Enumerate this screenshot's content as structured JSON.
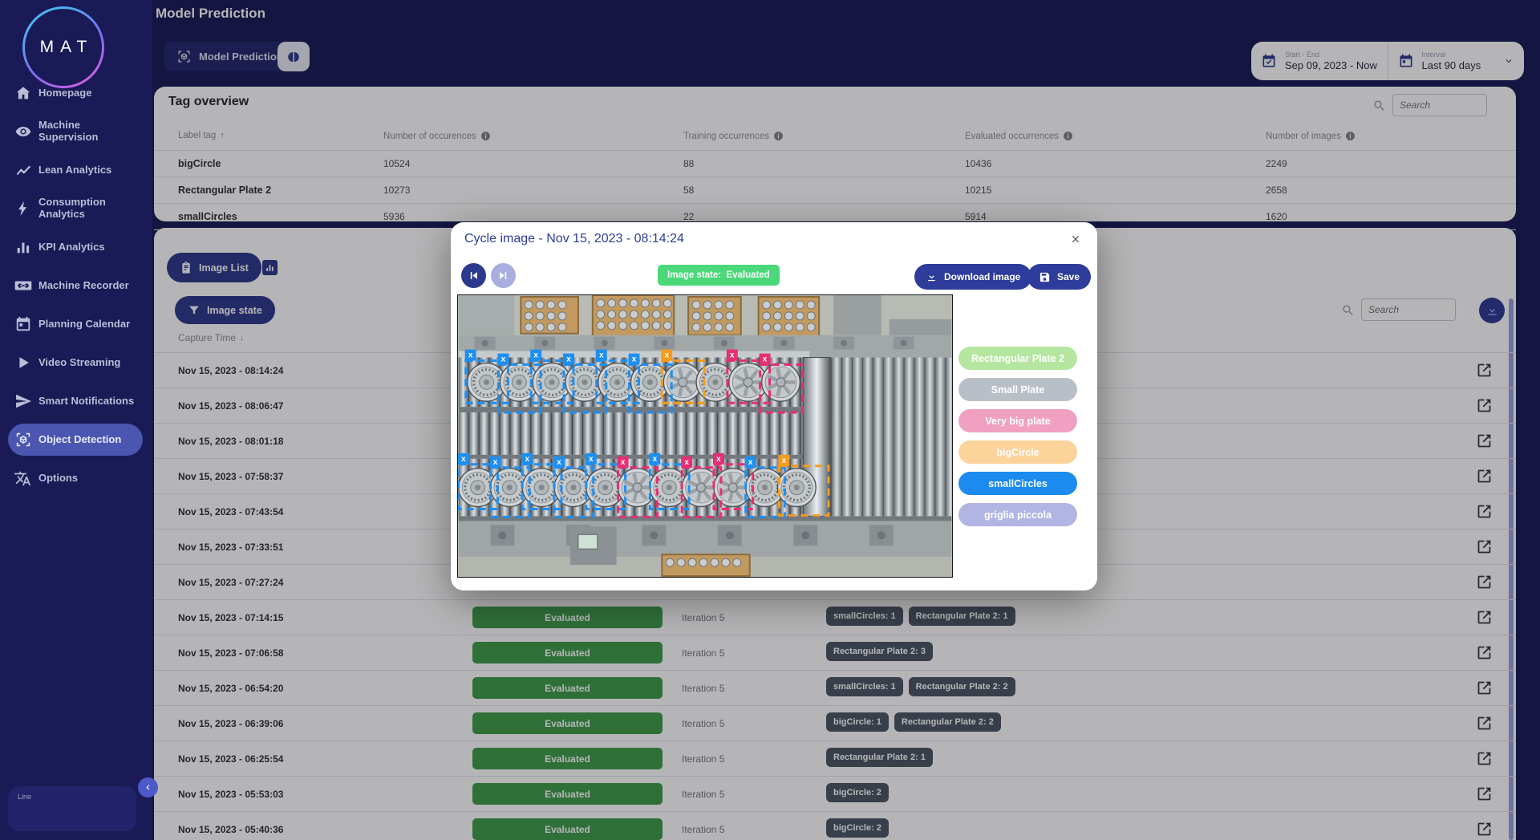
{
  "colors": {
    "navy": "#191a56",
    "accent": "#2d3a8c",
    "active_item": "#4a56b0",
    "green_badge": "#3f9d4b",
    "modal_green": "#4bd879",
    "chip": "#4d5765",
    "box_blue": "#1e8ff2",
    "box_orange": "#f79b18",
    "box_pink": "#e62e72",
    "scrollbar": "#9aa3e0"
  },
  "sidebar": {
    "logo_text": "MAT",
    "items": [
      {
        "label": "Homepage",
        "icon": "home-icon",
        "active": false
      },
      {
        "label": "Machine Supervision",
        "icon": "eye-icon",
        "active": false
      },
      {
        "label": "Lean Analytics",
        "icon": "line-chart-icon",
        "active": false
      },
      {
        "label": "Consumption Analytics",
        "icon": "lightning-icon",
        "active": false
      },
      {
        "label": "KPI Analytics",
        "icon": "bar-chart-icon",
        "active": false
      },
      {
        "label": "Machine Recorder",
        "icon": "cassette-icon",
        "active": false
      },
      {
        "label": "Planning Calendar",
        "icon": "calendar-icon",
        "active": false
      },
      {
        "label": "Video Streaming",
        "icon": "play-icon",
        "active": false
      },
      {
        "label": "Smart Notifications",
        "icon": "send-icon",
        "active": false
      },
      {
        "label": "Object Detection",
        "icon": "object-detection-icon",
        "active": true
      },
      {
        "label": "Options",
        "icon": "translate-icon",
        "active": false
      }
    ],
    "line_selector_label": "Line"
  },
  "header": {
    "page_title": "Model Prediction",
    "tab_label": "Model Prediction",
    "date_range": {
      "label": "Start - End",
      "value": "Sep 09, 2023 - Now"
    },
    "interval": {
      "label": "Interval",
      "value": "Last 90 days"
    }
  },
  "tag_overview": {
    "title": "Tag overview",
    "search_placeholder": "Search",
    "columns": [
      "Label tag",
      "Number of occurences",
      "Training occurrences",
      "Evaluated occurrences",
      "Number of images"
    ],
    "rows": [
      {
        "label": "bigCircle",
        "occurrences": "10524",
        "training": "88",
        "evaluated": "10436",
        "images": "2249"
      },
      {
        "label": "Rectangular Plate 2",
        "occurrences": "10273",
        "training": "58",
        "evaluated": "10215",
        "images": "2658"
      },
      {
        "label": "smallCircles",
        "occurrences": "5936",
        "training": "22",
        "evaluated": "5914",
        "images": "1620"
      }
    ]
  },
  "image_list": {
    "list_button_label": "Image List",
    "filter_button_label": "Image state",
    "search_placeholder": "Search",
    "capture_time_label": "Capture Time",
    "rows": [
      {
        "time": "Nov 15, 2023 - 08:14:24",
        "covered": true
      },
      {
        "time": "Nov 15, 2023 - 08:06:47",
        "covered": true
      },
      {
        "time": "Nov 15, 2023 - 08:01:18",
        "covered": true
      },
      {
        "time": "Nov 15, 2023 - 07:58:37",
        "covered": true
      },
      {
        "time": "Nov 15, 2023 - 07:43:54",
        "covered": true
      },
      {
        "time": "Nov 15, 2023 - 07:33:51",
        "covered": true
      },
      {
        "time": "Nov 15, 2023 - 07:27:24",
        "covered": true
      },
      {
        "time": "Nov 15, 2023 - 07:14:15",
        "covered": false,
        "state": "Evaluated",
        "iteration": "Iteration 5",
        "tags": [
          "smallCircles: 1",
          "Rectangular Plate 2: 1"
        ]
      },
      {
        "time": "Nov 15, 2023 - 07:06:58",
        "covered": false,
        "state": "Evaluated",
        "iteration": "Iteration 5",
        "tags": [
          "Rectangular Plate 2: 3"
        ]
      },
      {
        "time": "Nov 15, 2023 - 06:54:20",
        "covered": false,
        "state": "Evaluated",
        "iteration": "Iteration 5",
        "tags": [
          "smallCircles: 1",
          "Rectangular Plate 2: 2"
        ]
      },
      {
        "time": "Nov 15, 2023 - 06:39:06",
        "covered": false,
        "state": "Evaluated",
        "iteration": "Iteration 5",
        "tags": [
          "bigCircle: 1",
          "Rectangular Plate 2: 2"
        ]
      },
      {
        "time": "Nov 15, 2023 - 06:25:54",
        "covered": false,
        "state": "Evaluated",
        "iteration": "Iteration 5",
        "tags": [
          "Rectangular Plate 2: 1"
        ]
      },
      {
        "time": "Nov 15, 2023 - 05:53:03",
        "covered": false,
        "state": "Evaluated",
        "iteration": "Iteration 5",
        "tags": [
          "bigCircle: 2"
        ]
      },
      {
        "time": "Nov 15, 2023 - 05:40:36",
        "covered": false,
        "state": "Evaluated",
        "iteration": "Iteration 5",
        "tags": [
          "bigCircle: 2"
        ]
      }
    ]
  },
  "modal": {
    "title": "Cycle image - Nov 15, 2023 - 08:14:24",
    "state_badge": "Image state:  Evaluated",
    "download_label": "Download image",
    "save_label": "Save",
    "tags": [
      {
        "label": "Rectangular Plate 2",
        "color": "#b5e69f"
      },
      {
        "label": "Small Plate",
        "color": "#b9bfc6"
      },
      {
        "label": "Very big plate",
        "color": "#f0a0c0"
      },
      {
        "label": "bigCircle",
        "color": "#fbd39b"
      },
      {
        "label": "smallCircles",
        "color": "#1b8bef"
      },
      {
        "label": "griglia piccola",
        "color": "#b2b4e4"
      }
    ],
    "annotations": {
      "top_row": [
        "blue",
        "blue",
        "blue",
        "blue",
        "blue",
        "blue",
        "orange",
        null,
        "pink",
        "pink"
      ],
      "bottom_row": [
        "blue",
        "blue",
        "blue",
        "blue",
        "blue",
        "pink",
        "blue",
        "pink",
        "pink",
        "blue",
        "orange"
      ]
    }
  }
}
